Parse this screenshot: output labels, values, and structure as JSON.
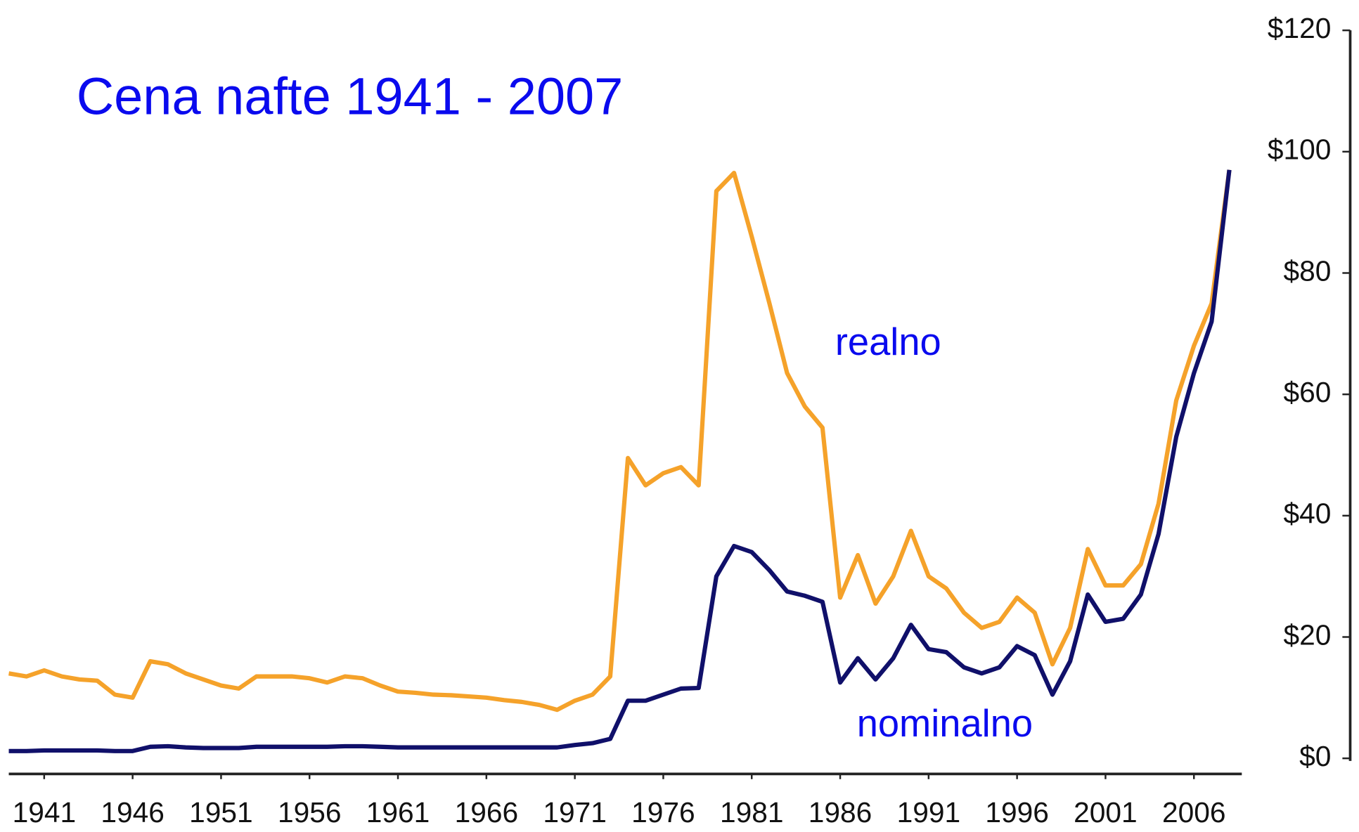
{
  "chart_data": {
    "type": "line",
    "title": "Cena nafte 1941 - 2007",
    "annotations": [
      "realno",
      "nominalno"
    ],
    "x": [
      1939,
      1940,
      1941,
      1942,
      1943,
      1944,
      1945,
      1946,
      1947,
      1948,
      1949,
      1950,
      1951,
      1952,
      1953,
      1954,
      1955,
      1956,
      1957,
      1958,
      1959,
      1960,
      1961,
      1962,
      1963,
      1964,
      1965,
      1966,
      1967,
      1968,
      1969,
      1970,
      1971,
      1972,
      1973,
      1974,
      1975,
      1976,
      1977,
      1978,
      1979,
      1980,
      1981,
      1982,
      1983,
      1984,
      1985,
      1986,
      1987,
      1988,
      1989,
      1990,
      1991,
      1992,
      1993,
      1994,
      1995,
      1996,
      1997,
      1998,
      1999,
      2000,
      2001,
      2002,
      2003,
      2004,
      2005,
      2006,
      2007,
      2008
    ],
    "series": [
      {
        "name": "realno",
        "color": "#f5a22a",
        "values": [
          14,
          13.5,
          14.5,
          13.5,
          13,
          12.8,
          10.5,
          10,
          16,
          15.5,
          14,
          13,
          12,
          11.5,
          13.5,
          13.5,
          13.5,
          13.2,
          12.5,
          13.5,
          13.2,
          12,
          11,
          10.8,
          10.5,
          10.4,
          10.2,
          10,
          9.6,
          9.3,
          8.8,
          8,
          9.5,
          10.5,
          13.5,
          49.5,
          45,
          47,
          48,
          45,
          93.5,
          96.5,
          86,
          75,
          63.5,
          58,
          54.5,
          26.5,
          33.5,
          25.5,
          30,
          37.5,
          30,
          28,
          24,
          21.5,
          22.5,
          26.5,
          24,
          15.5,
          21.5,
          34.5,
          28.5,
          28.5,
          32,
          42,
          59,
          68,
          75,
          97
        ]
      },
      {
        "name": "nominalno",
        "color": "#10106a",
        "values": [
          1.2,
          1.2,
          1.3,
          1.3,
          1.3,
          1.3,
          1.2,
          1.2,
          1.9,
          2,
          1.8,
          1.7,
          1.7,
          1.7,
          1.9,
          1.9,
          1.9,
          1.9,
          1.9,
          2,
          2,
          1.9,
          1.8,
          1.8,
          1.8,
          1.8,
          1.8,
          1.8,
          1.8,
          1.8,
          1.8,
          1.8,
          2.2,
          2.5,
          3.2,
          9.5,
          9.5,
          10.5,
          11.5,
          11.6,
          30,
          35,
          34,
          31,
          27.5,
          26.8,
          25.8,
          12.5,
          16.5,
          13,
          16.5,
          22,
          18,
          17.5,
          15,
          14,
          15,
          18.5,
          17,
          10.5,
          16,
          27,
          22.5,
          23,
          27,
          37,
          53,
          63.5,
          72,
          97
        ]
      }
    ],
    "xlim": [
      1939,
      2009
    ],
    "xticks": [
      1941,
      1946,
      1951,
      1956,
      1961,
      1966,
      1971,
      1976,
      1981,
      1986,
      1991,
      1996,
      2001,
      2006
    ],
    "ylim": [
      0,
      120
    ],
    "yticks": [
      {
        "value": 0,
        "label": "$0"
      },
      {
        "value": 20,
        "label": "$20"
      },
      {
        "value": 40,
        "label": "$40"
      },
      {
        "value": 60,
        "label": "$60"
      },
      {
        "value": 80,
        "label": "$80"
      },
      {
        "value": 100,
        "label": "$100"
      },
      {
        "value": 120,
        "label": "$120"
      }
    ],
    "y_axis_side": "right"
  }
}
